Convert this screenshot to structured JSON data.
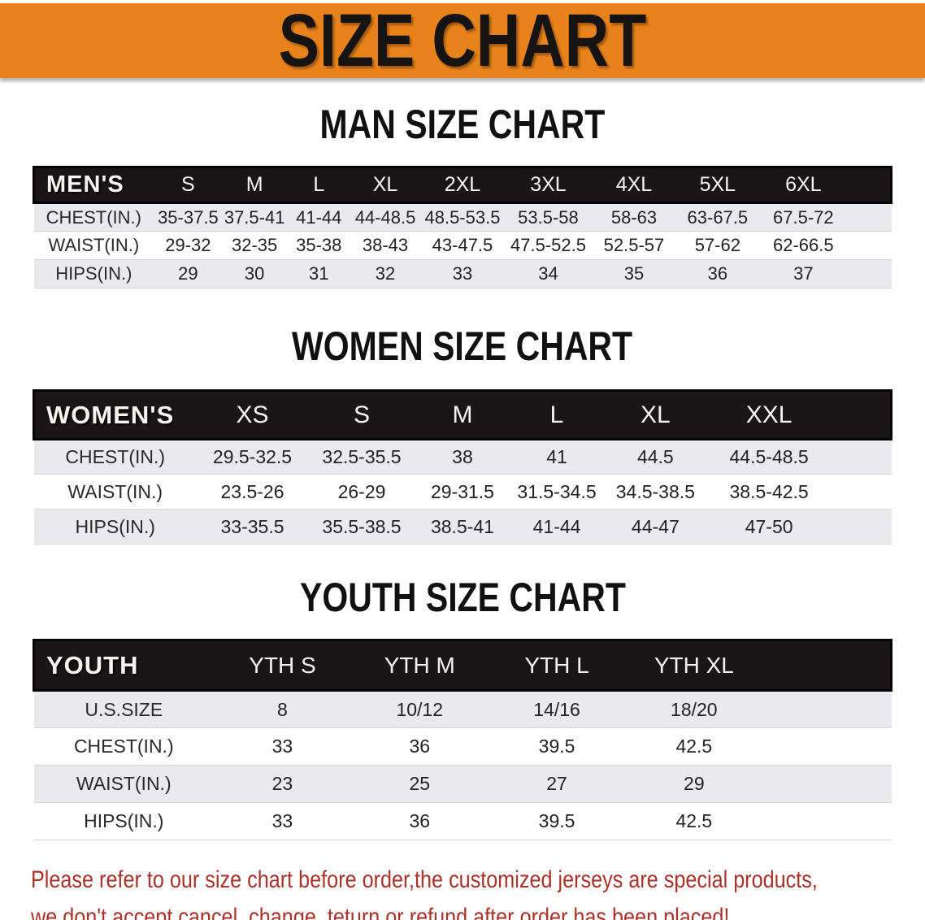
{
  "banner": {
    "title": "SIZE CHART",
    "bg_color": "#e8831b",
    "text_color": "#161413"
  },
  "sections": [
    {
      "title": "MAN SIZE CHART",
      "header_label": "MEN'S",
      "columns": [
        "S",
        "M",
        "L",
        "XL",
        "2XL",
        "3XL",
        "4XL",
        "5XL",
        "6XL"
      ],
      "rows": [
        {
          "label": "CHEST(IN.)",
          "values": [
            "35-37.5",
            "37.5-41",
            "41-44",
            "44-48.5",
            "48.5-53.5",
            "53.5-58",
            "58-63",
            "63-67.5",
            "67.5-72"
          ]
        },
        {
          "label": "WAIST(IN.)",
          "values": [
            "29-32",
            "32-35",
            "35-38",
            "38-43",
            "43-47.5",
            "47.5-52.5",
            "52.5-57",
            "57-62",
            "62-66.5"
          ]
        },
        {
          "label": "HIPS(IN.)",
          "values": [
            "29",
            "30",
            "31",
            "32",
            "33",
            "34",
            "35",
            "36",
            "37"
          ]
        }
      ]
    },
    {
      "title": "WOMEN SIZE CHART",
      "header_label": "WOMEN'S",
      "columns": [
        "XS",
        "S",
        "M",
        "L",
        "XL",
        "XXL"
      ],
      "rows": [
        {
          "label": "CHEST(IN.)",
          "values": [
            "29.5-32.5",
            "32.5-35.5",
            "38",
            "41",
            "44.5",
            "44.5-48.5"
          ]
        },
        {
          "label": "WAIST(IN.)",
          "values": [
            "23.5-26",
            "26-29",
            "29-31.5",
            "31.5-34.5",
            "34.5-38.5",
            "38.5-42.5"
          ]
        },
        {
          "label": "HIPS(IN.)",
          "values": [
            "33-35.5",
            "35.5-38.5",
            "38.5-41",
            "41-44",
            "44-47",
            "47-50"
          ]
        }
      ]
    },
    {
      "title": "YOUTH SIZE CHART",
      "header_label": "YOUTH",
      "columns": [
        "YTH S",
        "YTH M",
        "YTH L",
        "YTH XL"
      ],
      "rows": [
        {
          "label": "U.S.SIZE",
          "values": [
            "8",
            "10/12",
            "14/16",
            "18/20"
          ]
        },
        {
          "label": "CHEST(IN.)",
          "values": [
            "33",
            "36",
            "39.5",
            "42.5"
          ]
        },
        {
          "label": "WAIST(IN.)",
          "values": [
            "23",
            "25",
            "27",
            "29"
          ]
        },
        {
          "label": "HIPS(IN.)",
          "values": [
            "33",
            "36",
            "39.5",
            "42.5"
          ]
        }
      ]
    }
  ],
  "footer": {
    "line1": "Please refer to our size chart before order,the customized jerseys are special products,",
    "line2": "we don't accept cancel, change, teturn or refund after order has been placed!",
    "text_color": "#a8332b"
  }
}
